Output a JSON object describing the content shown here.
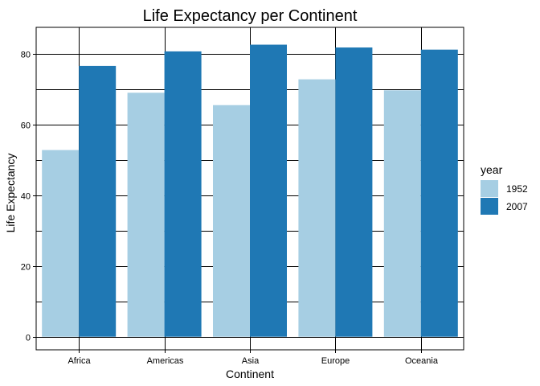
{
  "chart_data": {
    "type": "bar",
    "title": "Life Expectancy per Continent",
    "xlabel": "Continent",
    "ylabel": "Life Expectancy",
    "categories": [
      "Africa",
      "Americas",
      "Asia",
      "Europe",
      "Oceania"
    ],
    "series": [
      {
        "name": "1952",
        "color": "#a6cee3",
        "values": [
          52.8,
          69.0,
          65.5,
          72.8,
          69.7
        ]
      },
      {
        "name": "2007",
        "color": "#1f78b4",
        "values": [
          76.6,
          80.7,
          82.6,
          81.8,
          81.2
        ]
      }
    ],
    "ylim": [
      -3.7,
      87.5
    ],
    "yticks": [
      0,
      20,
      40,
      60,
      80
    ],
    "grid": true,
    "legend": {
      "title": "year",
      "position": "right"
    }
  }
}
